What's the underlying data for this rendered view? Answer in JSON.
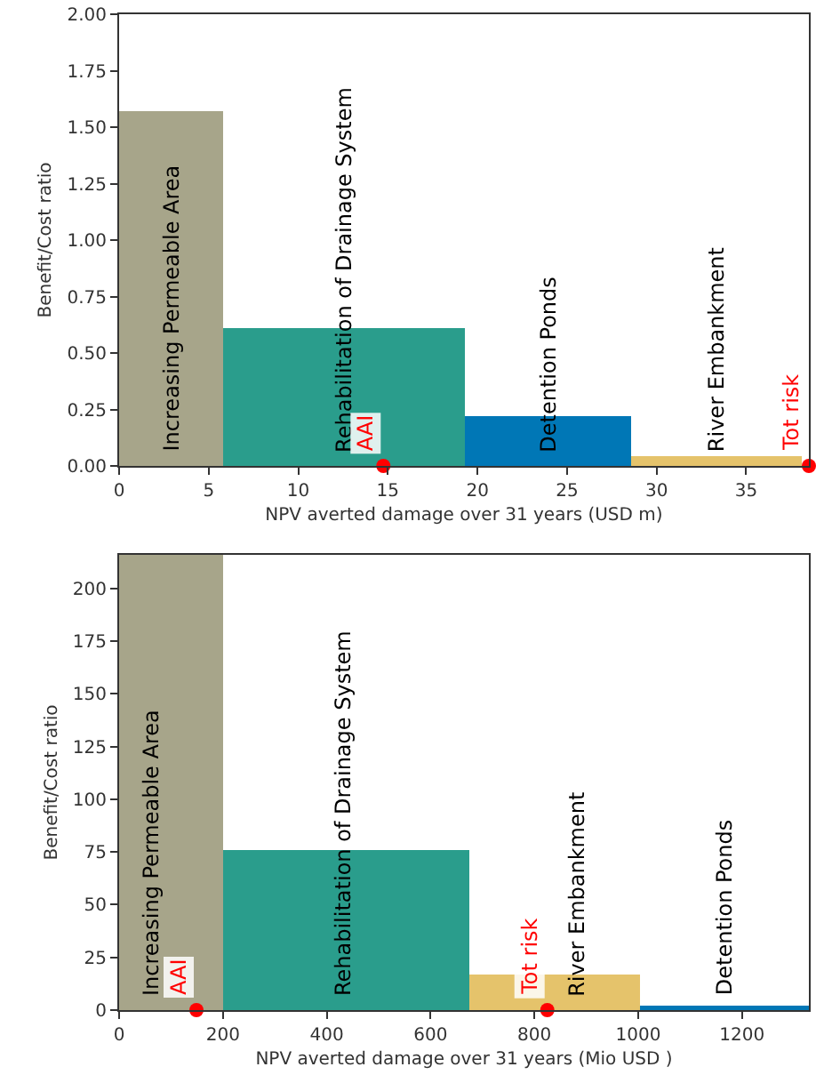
{
  "chart_data": [
    {
      "type": "histogram",
      "xlabel": "NPV averted damage over 31 years (USD m)",
      "ylabel": "Benefit/Cost ratio",
      "bins": [
        0,
        5.8,
        19.3,
        28.6,
        38.1
      ],
      "values": [
        1.57,
        0.61,
        0.22,
        0.045
      ],
      "colors": [
        "#a7a58a",
        "#2a9d8c",
        "#0077b6",
        "#e5c36b"
      ],
      "series": [
        {
          "name": "AAI",
          "type": "scatter",
          "x": [
            14.75
          ],
          "values": [
            0
          ],
          "color": "#ff0000"
        },
        {
          "name": "Tot risk",
          "type": "scatter",
          "x": [
            38.5
          ],
          "values": [
            0
          ],
          "color": "#ff0000"
        }
      ],
      "annotations": [
        {
          "text": "Increasing Permeable Area",
          "x": 2.9,
          "y": 0
        },
        {
          "text": "Rehabilitation of Drainage System",
          "x": 12.5,
          "y": 0
        },
        {
          "text": "Detention Ponds",
          "x": 23.9,
          "y": 0
        },
        {
          "text": "River Embankment",
          "x": 33.3,
          "y": 0
        }
      ],
      "xlim": [
        0,
        38.5
      ],
      "ylim": [
        0,
        2
      ],
      "xticks": [
        0,
        5,
        10,
        15,
        20,
        25,
        30,
        35
      ],
      "yticks": [
        {
          "value": 0,
          "label": "0.00"
        },
        {
          "value": 0.25,
          "label": "0.25"
        },
        {
          "value": 0.5,
          "label": "0.50"
        },
        {
          "value": 0.75,
          "label": "0.75"
        },
        {
          "value": 1,
          "label": "1.00"
        },
        {
          "value": 1.25,
          "label": "1.25"
        },
        {
          "value": 1.5,
          "label": "1.50"
        },
        {
          "value": 1.75,
          "label": "1.75"
        },
        {
          "value": 2,
          "label": "2.00"
        }
      ],
      "marker": "circle",
      "grid": false,
      "legend": false
    },
    {
      "type": "histogram",
      "xlabel": "NPV averted damage over 31 years (Mio USD )",
      "ylabel": "Benefit/Cost ratio",
      "bins": [
        0,
        200,
        675,
        1004,
        1329
      ],
      "values": [
        216,
        76,
        17,
        2
      ],
      "colors": [
        "#a7a58a",
        "#2a9d8c",
        "#e5c36b",
        "#0077b6"
      ],
      "series": [
        {
          "name": "AAI",
          "type": "scatter",
          "x": [
            149
          ],
          "values": [
            0
          ],
          "color": "#ff0000"
        },
        {
          "name": "Tot risk",
          "type": "scatter",
          "x": [
            825
          ],
          "values": [
            0
          ],
          "color": "#ff0000"
        }
      ],
      "annotations": [
        {
          "text": "Increasing Permeable Area",
          "x": 60,
          "y": 0
        },
        {
          "text": "Rehabilitation of Drainage System",
          "x": 430,
          "y": 0
        },
        {
          "text": "River Embankment",
          "x": 880,
          "y": 0
        },
        {
          "text": "Detention Ponds",
          "x": 1165,
          "y": 0
        }
      ],
      "xlim": [
        0,
        1329
      ],
      "ylim": [
        0,
        216
      ],
      "xticks": [
        0,
        200,
        400,
        600,
        800,
        1000,
        1200
      ],
      "yticks": [
        0,
        25,
        50,
        75,
        100,
        125,
        150,
        175,
        200
      ],
      "marker": "circle",
      "grid": false,
      "legend": false
    }
  ]
}
